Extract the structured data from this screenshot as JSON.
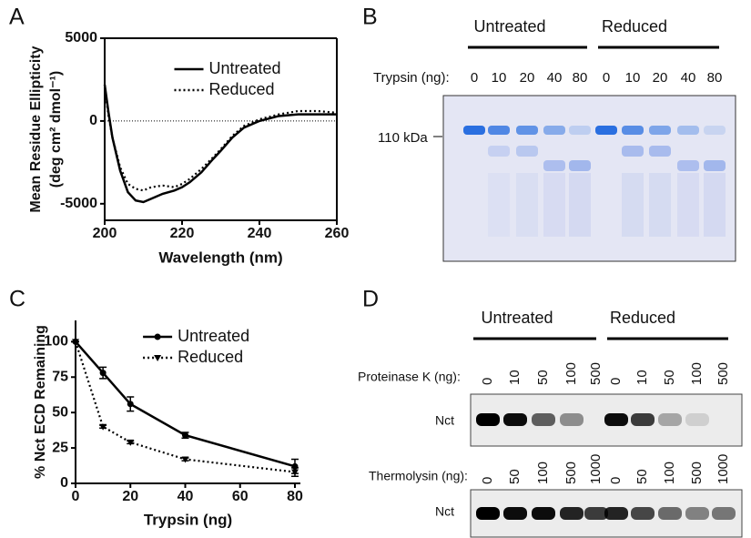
{
  "panel_labels": [
    "A",
    "B",
    "C",
    "D"
  ],
  "chart_data": [
    {
      "type": "line",
      "xlabel": "Wavelength (nm)",
      "ylabel": [
        "Mean Residue Ellipticity",
        "(deg cm² dmol⁻¹)"
      ],
      "x": [
        200,
        201,
        202,
        204,
        206,
        208,
        210,
        212,
        215,
        218,
        220,
        222,
        225,
        228,
        230,
        233,
        236,
        240,
        245,
        250,
        255,
        260
      ],
      "series": [
        {
          "name": "Untreated",
          "color": "#000000",
          "line_style": "solid",
          "values": [
            2200,
            500,
            -1000,
            -3000,
            -4300,
            -4800,
            -4900,
            -4700,
            -4400,
            -4200,
            -4000,
            -3700,
            -3100,
            -2300,
            -1800,
            -1000,
            -400,
            0,
            300,
            400,
            400,
            400
          ]
        },
        {
          "name": "Reduced",
          "color": "#000000",
          "line_style": "dotted",
          "values": [
            2000,
            300,
            -1000,
            -2800,
            -3800,
            -4100,
            -4200,
            -4000,
            -3900,
            -4000,
            -3800,
            -3500,
            -2900,
            -2200,
            -1700,
            -900,
            -300,
            100,
            400,
            600,
            600,
            500
          ]
        }
      ],
      "xlim": [
        200,
        260
      ],
      "xticks": [
        200,
        220,
        240,
        260
      ],
      "ylim": [
        -6000,
        5000
      ],
      "yticks": [
        -5000,
        0,
        5000
      ],
      "zero_line": true,
      "frame": "box",
      "legend": "upper center"
    },
    {
      "type": "line",
      "xlabel": "Trypsin (ng)",
      "ylabel": [
        "% Nct ECD Remaining"
      ],
      "x": [
        0,
        10,
        20,
        40,
        80
      ],
      "series": [
        {
          "name": "Untreated",
          "color": "#000000",
          "line_style": "solid",
          "marker": "circle",
          "values": [
            100,
            78,
            56,
            34,
            12
          ],
          "errors": [
            0,
            4,
            5,
            2,
            5
          ]
        },
        {
          "name": "Reduced",
          "color": "#000000",
          "line_style": "dotted",
          "marker": "triangle-down",
          "values": [
            100,
            40,
            29,
            17,
            8
          ],
          "errors": [
            0,
            1,
            1,
            1,
            3
          ]
        }
      ],
      "xlim": [
        0,
        82
      ],
      "xticks": [
        0,
        20,
        40,
        60,
        80
      ],
      "ylim": [
        0,
        115
      ],
      "yticks": [
        0,
        25,
        50,
        75,
        100
      ],
      "zero_line": false,
      "frame": "axes",
      "legend": "upper center"
    }
  ],
  "gel_b": {
    "groups": [
      "Untreated",
      "Reduced"
    ],
    "lane_title": "Trypsin (ng):",
    "lanes": [
      0,
      10,
      20,
      40,
      80,
      0,
      10,
      20,
      40,
      80
    ],
    "marker": "110 kDa"
  },
  "gel_d": {
    "groups": [
      "Untreated",
      "Reduced"
    ],
    "blots": [
      {
        "lane_title": "Proteinase K (ng):",
        "lanes": [
          0,
          10,
          50,
          100,
          500,
          0,
          10,
          50,
          100,
          500
        ],
        "row_label": "Nct"
      },
      {
        "lane_title": "Thermolysin (ng):",
        "lanes": [
          0,
          50,
          100,
          500,
          1000,
          0,
          50,
          100,
          500,
          1000
        ],
        "row_label": "Nct"
      }
    ]
  }
}
